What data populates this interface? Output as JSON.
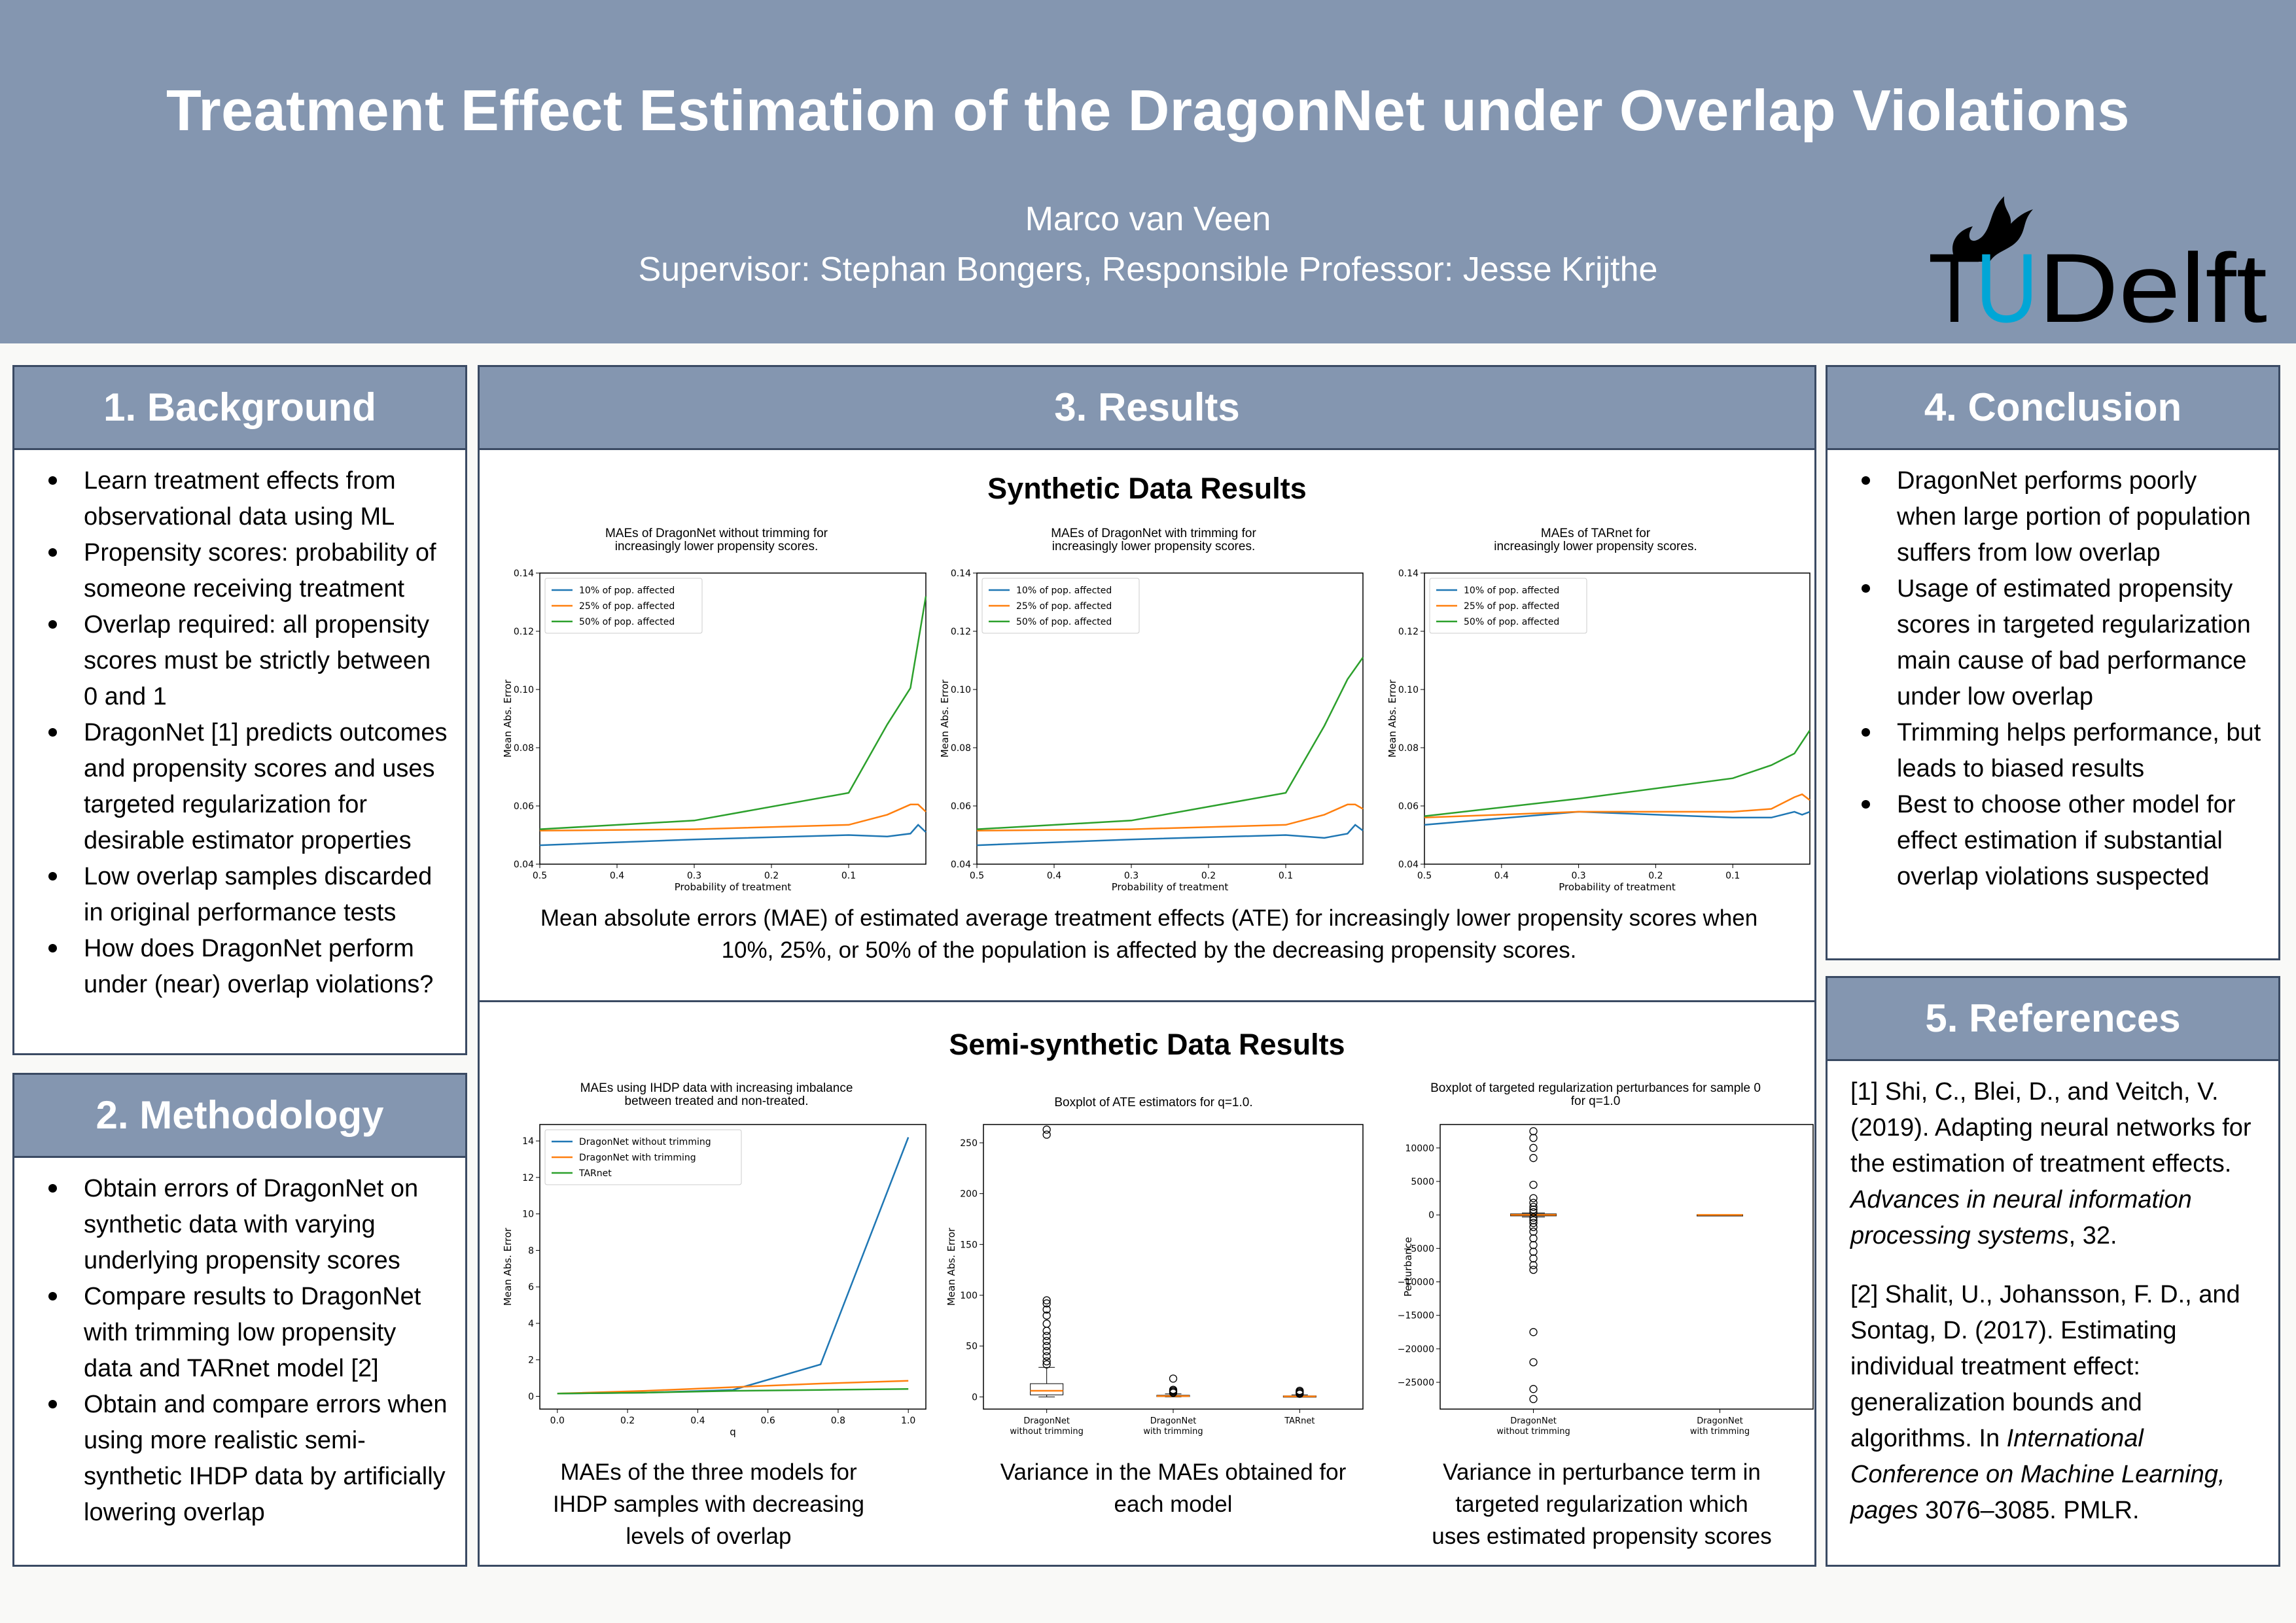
{
  "header": {
    "title": "Treatment Effect Estimation of the DragonNet under Overlap Violations",
    "author": "Marco van Veen",
    "supervisor": "Supervisor: Stephan Bongers, Responsible Professor: Jesse Krijthe",
    "logo_text": "TUDelft"
  },
  "background": {
    "heading": "1. Background",
    "bullets": [
      "Learn treatment effects from observational data using ML",
      "Propensity scores: probability of someone receiving treatment",
      "Overlap required: all propensity scores must be strictly between 0 and 1",
      "DragonNet [1] predicts outcomes and propensity scores and uses targeted regularization for desirable estimator properties",
      "Low overlap samples discarded in original performance tests",
      "How does DragonNet perform under (near) overlap violations?"
    ]
  },
  "methodology": {
    "heading": "2. Methodology",
    "bullets": [
      "Obtain errors of DragonNet on synthetic data with varying underlying propensity scores",
      "Compare results to DragonNet with trimming low propensity data and TARnet model [2]",
      "Obtain and compare errors when using more realistic semi-synthetic IHDP data by artificially lowering overlap"
    ]
  },
  "results": {
    "heading": "3. Results",
    "synthetic_title": "Synthetic Data Results",
    "synthetic_caption": "Mean absolute errors (MAE) of estimated average treatment effects (ATE) for increasingly lower propensity scores when 10%, 25%, or 50% of the population is affected by the decreasing propensity scores.",
    "semi_title": "Semi-synthetic Data Results",
    "semi_captions": [
      "MAEs of the three models for IHDP samples with decreasing levels of overlap",
      "Variance in the MAEs obtained for each model",
      "Variance in perturbance term in targeted regularization which uses estimated propensity scores"
    ]
  },
  "conclusion": {
    "heading": "4. Conclusion",
    "bullets": [
      "DragonNet performs poorly when large portion of population suffers from low overlap",
      "Usage of estimated propensity scores in targeted regularization main cause of bad performance under low overlap",
      "Trimming helps performance, but leads to biased results",
      "Best to choose other model for effect estimation if substantial overlap violations suspected"
    ]
  },
  "references": {
    "heading": "5. References",
    "items": [
      {
        "pre": "[1] Shi, C., Blei, D., and Veitch, V. (2019). Adapting neural networks for the estimation of treatment effects. ",
        "ital": "Advances in neural information processing systems",
        "post": ", 32."
      },
      {
        "pre": "[2] Shalit, U., Johansson, F. D., and Sontag, D. (2017). Estimating individual treatment effect: generalization bounds and algorithms. In ",
        "ital": "International Conference on Machine Learning, pages",
        "post": " 3076–3085. PMLR."
      }
    ]
  },
  "chart_data": [
    {
      "type": "line",
      "title": "MAEs of DragonNet without trimming for\nincreasingly lower propensity scores.",
      "xlabel": "Probability of treatment",
      "ylabel": "Mean Abs. Error",
      "xlim": [
        0.5,
        0.0
      ],
      "ylim": [
        0.04,
        0.14
      ],
      "xticks": [
        0.5,
        0.4,
        0.3,
        0.2,
        0.1
      ],
      "xticklabels": [
        "0.5",
        "0.4",
        "0.3",
        "0.2",
        "0.1"
      ],
      "yticks": [
        0.04,
        0.06,
        0.08,
        0.1,
        0.12,
        0.14
      ],
      "yticklabels": [
        "0.04",
        "0.06",
        "0.08",
        "0.10",
        "0.12",
        "0.14"
      ],
      "legend_position": "upper-left",
      "series": [
        {
          "name": "10% of pop. affected",
          "color": "#1f77b4",
          "x": [
            0.5,
            0.3,
            0.1,
            0.05,
            0.02,
            0.01,
            0.0
          ],
          "y": [
            0.0465,
            0.0485,
            0.05,
            0.0495,
            0.0505,
            0.0535,
            0.051
          ]
        },
        {
          "name": "25% of pop. affected",
          "color": "#ff7f0e",
          "x": [
            0.5,
            0.3,
            0.1,
            0.05,
            0.02,
            0.01,
            0.0
          ],
          "y": [
            0.0515,
            0.052,
            0.0535,
            0.057,
            0.0605,
            0.0605,
            0.058
          ]
        },
        {
          "name": "50% of pop. affected",
          "color": "#2ca02c",
          "x": [
            0.5,
            0.3,
            0.1,
            0.05,
            0.02,
            0.0
          ],
          "y": [
            0.052,
            0.055,
            0.0645,
            0.088,
            0.1005,
            0.132
          ]
        }
      ]
    },
    {
      "type": "line",
      "title": "MAEs of DragonNet with trimming for\nincreasingly lower propensity scores.",
      "xlabel": "Probability of treatment",
      "ylabel": "Mean Abs. Error",
      "xlim": [
        0.5,
        0.0
      ],
      "ylim": [
        0.04,
        0.14
      ],
      "xticks": [
        0.5,
        0.4,
        0.3,
        0.2,
        0.1
      ],
      "xticklabels": [
        "0.5",
        "0.4",
        "0.3",
        "0.2",
        "0.1"
      ],
      "yticks": [
        0.04,
        0.06,
        0.08,
        0.1,
        0.12,
        0.14
      ],
      "yticklabels": [
        "0.04",
        "0.06",
        "0.08",
        "0.10",
        "0.12",
        "0.14"
      ],
      "legend_position": "upper-left",
      "series": [
        {
          "name": "10% of pop. affected",
          "color": "#1f77b4",
          "x": [
            0.5,
            0.3,
            0.1,
            0.05,
            0.02,
            0.01,
            0.0
          ],
          "y": [
            0.0465,
            0.0485,
            0.05,
            0.049,
            0.0505,
            0.0535,
            0.0515
          ]
        },
        {
          "name": "25% of pop. affected",
          "color": "#ff7f0e",
          "x": [
            0.5,
            0.3,
            0.1,
            0.05,
            0.02,
            0.01,
            0.0
          ],
          "y": [
            0.0515,
            0.052,
            0.0535,
            0.057,
            0.0605,
            0.0605,
            0.059
          ]
        },
        {
          "name": "50% of pop. affected",
          "color": "#2ca02c",
          "x": [
            0.5,
            0.3,
            0.1,
            0.05,
            0.02,
            0.0
          ],
          "y": [
            0.052,
            0.055,
            0.0645,
            0.0875,
            0.1035,
            0.111
          ]
        }
      ]
    },
    {
      "type": "line",
      "title": "MAEs of TARnet for\nincreasingly lower propensity scores.",
      "xlabel": "Probability of treatment",
      "ylabel": "Mean Abs. Error",
      "xlim": [
        0.5,
        0.0
      ],
      "ylim": [
        0.04,
        0.14
      ],
      "xticks": [
        0.5,
        0.4,
        0.3,
        0.2,
        0.1
      ],
      "xticklabels": [
        "0.5",
        "0.4",
        "0.3",
        "0.2",
        "0.1"
      ],
      "yticks": [
        0.04,
        0.06,
        0.08,
        0.1,
        0.12,
        0.14
      ],
      "yticklabels": [
        "0.04",
        "0.06",
        "0.08",
        "0.10",
        "0.12",
        "0.14"
      ],
      "legend_position": "upper-left",
      "series": [
        {
          "name": "10% of pop. affected",
          "color": "#1f77b4",
          "x": [
            0.5,
            0.3,
            0.1,
            0.05,
            0.02,
            0.01,
            0.0
          ],
          "y": [
            0.0535,
            0.058,
            0.056,
            0.056,
            0.058,
            0.057,
            0.058
          ]
        },
        {
          "name": "25% of pop. affected",
          "color": "#ff7f0e",
          "x": [
            0.5,
            0.3,
            0.1,
            0.05,
            0.02,
            0.01,
            0.0
          ],
          "y": [
            0.056,
            0.058,
            0.058,
            0.059,
            0.063,
            0.064,
            0.062
          ]
        },
        {
          "name": "50% of pop. affected",
          "color": "#2ca02c",
          "x": [
            0.5,
            0.3,
            0.1,
            0.05,
            0.02,
            0.0
          ],
          "y": [
            0.0565,
            0.0625,
            0.0695,
            0.074,
            0.078,
            0.086
          ]
        }
      ]
    },
    {
      "type": "line",
      "title": "MAEs using IHDP data with increasing imbalance\nbetween treated and non-treated.",
      "xlabel": "q",
      "ylabel": "Mean Abs. Error",
      "xlim": [
        -0.05,
        1.05
      ],
      "ylim": [
        -0.7,
        14.9
      ],
      "xticks": [
        0,
        0.2,
        0.4,
        0.6,
        0.8,
        1.0
      ],
      "xticklabels": [
        "0.0",
        "0.2",
        "0.4",
        "0.6",
        "0.8",
        "1.0"
      ],
      "yticks": [
        0,
        2,
        4,
        6,
        8,
        10,
        12,
        14
      ],
      "yticklabels": [
        "0",
        "2",
        "4",
        "6",
        "8",
        "10",
        "12",
        "14"
      ],
      "legend_position": "upper-left",
      "series": [
        {
          "name": "DragonNet without trimming",
          "color": "#1f77b4",
          "x": [
            0,
            0.25,
            0.5,
            0.75,
            1.0
          ],
          "y": [
            0.15,
            0.2,
            0.35,
            1.75,
            14.2
          ]
        },
        {
          "name": "DragonNet with trimming",
          "color": "#ff7f0e",
          "x": [
            0,
            0.25,
            0.5,
            0.75,
            1.0
          ],
          "y": [
            0.15,
            0.3,
            0.5,
            0.7,
            0.85
          ]
        },
        {
          "name": "TARnet",
          "color": "#2ca02c",
          "x": [
            0,
            0.25,
            0.5,
            0.75,
            1.0
          ],
          "y": [
            0.15,
            0.2,
            0.3,
            0.35,
            0.4
          ]
        }
      ]
    },
    {
      "type": "boxplot",
      "title": "Boxplot of ATE estimators for q=1.0.",
      "xlabel": "",
      "ylabel": "Mean Abs. Error",
      "ylim": [
        -12,
        268
      ],
      "yticks": [
        0,
        50,
        100,
        150,
        200,
        250
      ],
      "yticklabels": [
        "0",
        "50",
        "100",
        "150",
        "200",
        "250"
      ],
      "categories": [
        "DragonNet\nwithout trimming",
        "DragonNet\nwith trimming",
        "TARnet"
      ],
      "boxes": [
        {
          "q1": 2,
          "median": 6,
          "q3": 13,
          "whislo": 0,
          "whishi": 29,
          "fliers": [
            32,
            35,
            40,
            45,
            50,
            55,
            60,
            65,
            72,
            80,
            86,
            92,
            95,
            258,
            263
          ]
        },
        {
          "q1": 0.3,
          "median": 0.8,
          "q3": 1.6,
          "whislo": 0,
          "whishi": 3,
          "fliers": [
            4,
            5,
            6,
            7,
            18
          ]
        },
        {
          "q1": 0.2,
          "median": 0.5,
          "q3": 1,
          "whislo": 0,
          "whishi": 2,
          "fliers": [
            3,
            4,
            5,
            6
          ]
        }
      ]
    },
    {
      "type": "boxplot",
      "title": "Boxplot of targeted regularization perturbances for sample 0\nfor q=1.0",
      "xlabel": "",
      "ylabel": "Perturbance",
      "ylim": [
        -29000,
        13500
      ],
      "yticks": [
        10000,
        5000,
        0,
        -5000,
        -10000,
        -15000,
        -20000,
        -25000
      ],
      "yticklabels": [
        "10000",
        "5000",
        "0",
        "−5000",
        "−10000",
        "−15000",
        "−20000",
        "−25000"
      ],
      "categories": [
        "DragonNet\nwithout trimming",
        "DragonNet\nwith trimming"
      ],
      "boxes": [
        {
          "q1": -150,
          "median": 0,
          "q3": 150,
          "whislo": -300,
          "whishi": 300,
          "fliers": [
            12500,
            11500,
            10000,
            8500,
            4500,
            2500,
            1800,
            1200,
            800,
            400,
            -400,
            -800,
            -1200,
            -1800,
            -2500,
            -3500,
            -4500,
            -5500,
            -6500,
            -7500,
            -8200,
            -17500,
            -22000,
            -26000,
            -27500
          ]
        },
        {
          "q1": -30,
          "median": 0,
          "q3": 30,
          "whislo": -60,
          "whishi": 60,
          "fliers": []
        }
      ]
    }
  ]
}
